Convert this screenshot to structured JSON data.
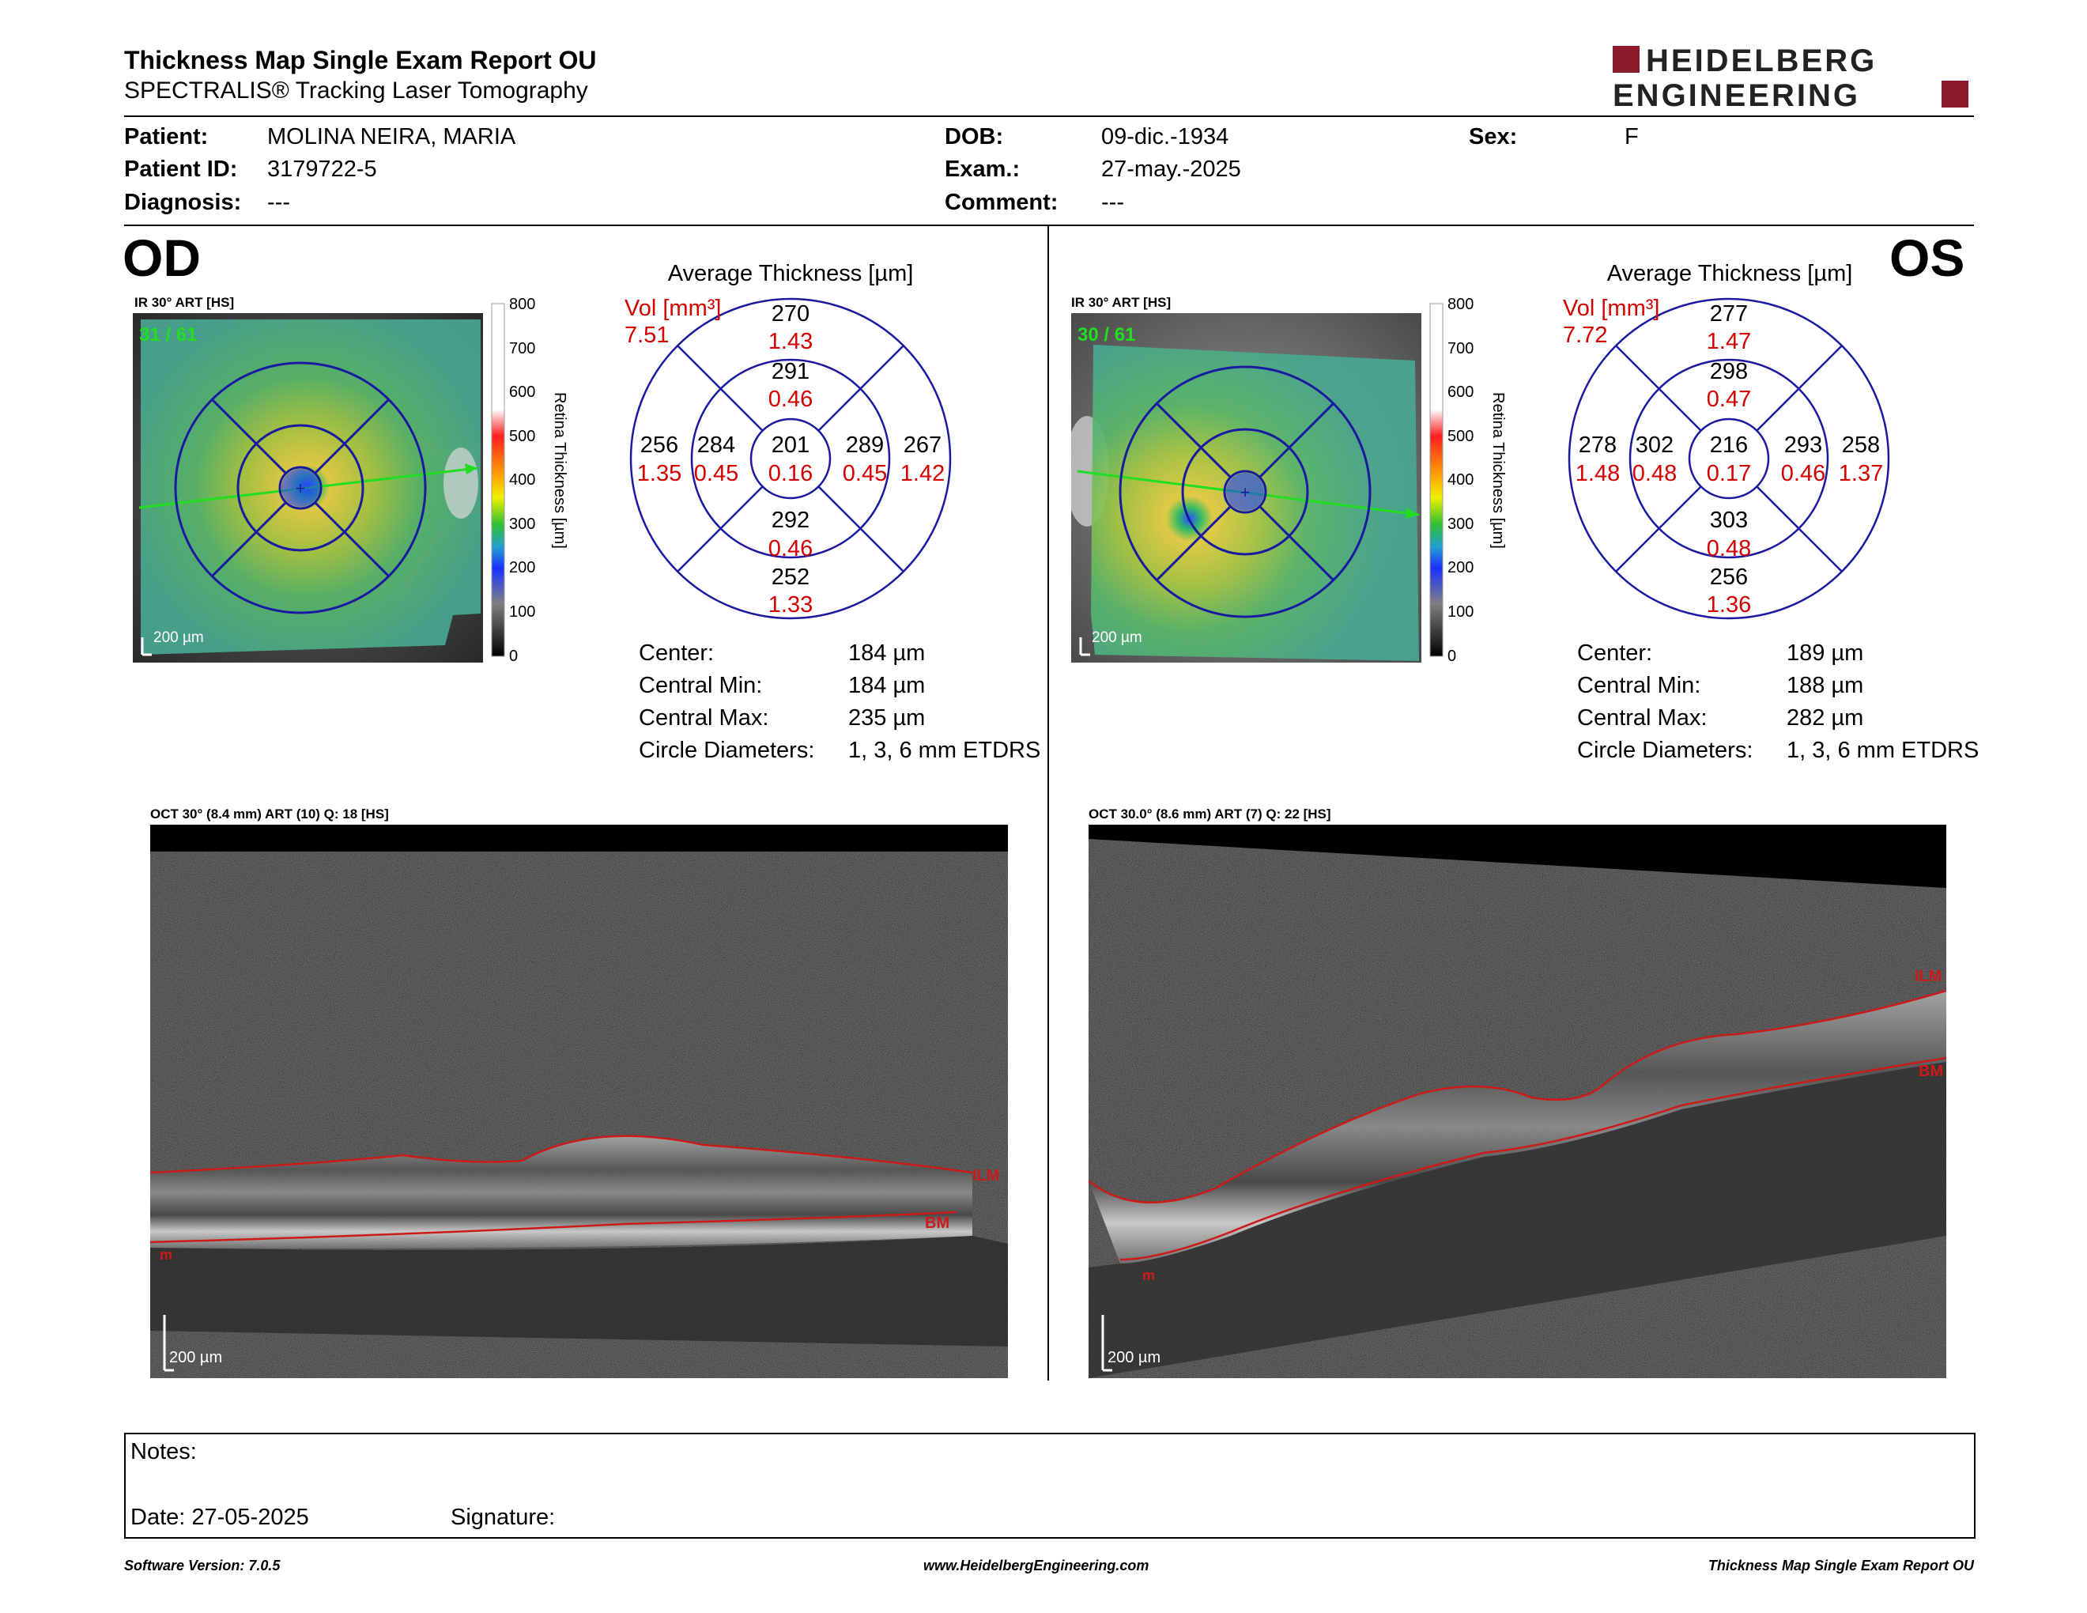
{
  "header": {
    "title": "Thickness Map Single Exam Report OU",
    "subtitle": "SPECTRALIS® Tracking Laser Tomography",
    "brand_line1": "HEIDELBERG",
    "brand_line2": "ENGINEERING"
  },
  "patient": {
    "patient_label": "Patient:",
    "patient_value": "MOLINA NEIRA, MARIA",
    "id_label": "Patient ID:",
    "id_value": "3179722-5",
    "diagnosis_label": "Diagnosis:",
    "diagnosis_value": "---",
    "dob_label": "DOB:",
    "dob_value": "09-dic.-1934",
    "exam_label": "Exam.:",
    "exam_value": "27-may.-2025",
    "comment_label": "Comment:",
    "comment_value": "---",
    "sex_label": "Sex:",
    "sex_value": "F"
  },
  "scale": {
    "ticks": [
      "800",
      "700",
      "600",
      "500",
      "400",
      "300",
      "200",
      "100",
      "0"
    ],
    "axis_label": "Retina Thickness [µm]"
  },
  "od": {
    "eye": "OD",
    "ir_label": "IR 30° ART [HS]",
    "frames": "31 / 61",
    "ir_scalebar": "200 µm",
    "avg_title": "Average Thickness [µm]",
    "vol_label": "Vol [mm³]",
    "vol_value": "7.51",
    "sectors": {
      "center": [
        "201",
        "0.16"
      ],
      "inner_sup": [
        "291",
        "0.46"
      ],
      "inner_inf": [
        "292",
        "0.46"
      ],
      "inner_left": [
        "284",
        "0.45"
      ],
      "inner_right": [
        "289",
        "0.45"
      ],
      "outer_sup": [
        "270",
        "1.43"
      ],
      "outer_inf": [
        "252",
        "1.33"
      ],
      "outer_left": [
        "256",
        "1.35"
      ],
      "outer_right": [
        "267",
        "1.42"
      ]
    },
    "stats": {
      "center_label": "Center:",
      "center_value": "184 µm",
      "min_label": "Central Min:",
      "min_value": "184 µm",
      "max_label": "Central Max:",
      "max_value": "235 µm",
      "circ_label": "Circle Diameters:",
      "circ_value": "1, 3, 6 mm ETDRS"
    },
    "oct_label": "OCT 30° (8.4 mm) ART (10) Q: 18 [HS]",
    "ilm": "ILM",
    "bm": "BM",
    "m": "m",
    "oct_scalebar": "200 µm"
  },
  "os": {
    "eye": "OS",
    "ir_label": "IR 30° ART [HS]",
    "frames": "30 / 61",
    "ir_scalebar": "200 µm",
    "avg_title": "Average Thickness [µm]",
    "vol_label": "Vol [mm³]",
    "vol_value": "7.72",
    "sectors": {
      "center": [
        "216",
        "0.17"
      ],
      "inner_sup": [
        "298",
        "0.47"
      ],
      "inner_inf": [
        "303",
        "0.48"
      ],
      "inner_left": [
        "302",
        "0.48"
      ],
      "inner_right": [
        "293",
        "0.46"
      ],
      "outer_sup": [
        "277",
        "1.47"
      ],
      "outer_inf": [
        "256",
        "1.36"
      ],
      "outer_left": [
        "278",
        "1.48"
      ],
      "outer_right": [
        "258",
        "1.37"
      ]
    },
    "stats": {
      "center_label": "Center:",
      "center_value": "189 µm",
      "min_label": "Central Min:",
      "min_value": "188 µm",
      "max_label": "Central Max:",
      "max_value": "282 µm",
      "circ_label": "Circle Diameters:",
      "circ_value": "1, 3, 6 mm ETDRS"
    },
    "oct_label": "OCT 30.0° (8.6 mm) ART (7) Q: 22 [HS]",
    "ilm": "ILM",
    "bm": "BM",
    "m": "m",
    "oct_scalebar": "200 µm"
  },
  "notes": {
    "notes_label": "Notes:",
    "date_label": "Date: 27-05-2025",
    "signature_label": "Signature:"
  },
  "footer": {
    "software": "Software Version: 7.0.5",
    "website": "www.HeidelbergEngineering.com",
    "report": "Thickness Map Single Exam Report OU"
  },
  "colors": {
    "brand_red": "#8b1a2b",
    "circle_blue": "#1a1aa0",
    "vol_red": "#d40000",
    "ilm_red": "#cc1a1a"
  }
}
